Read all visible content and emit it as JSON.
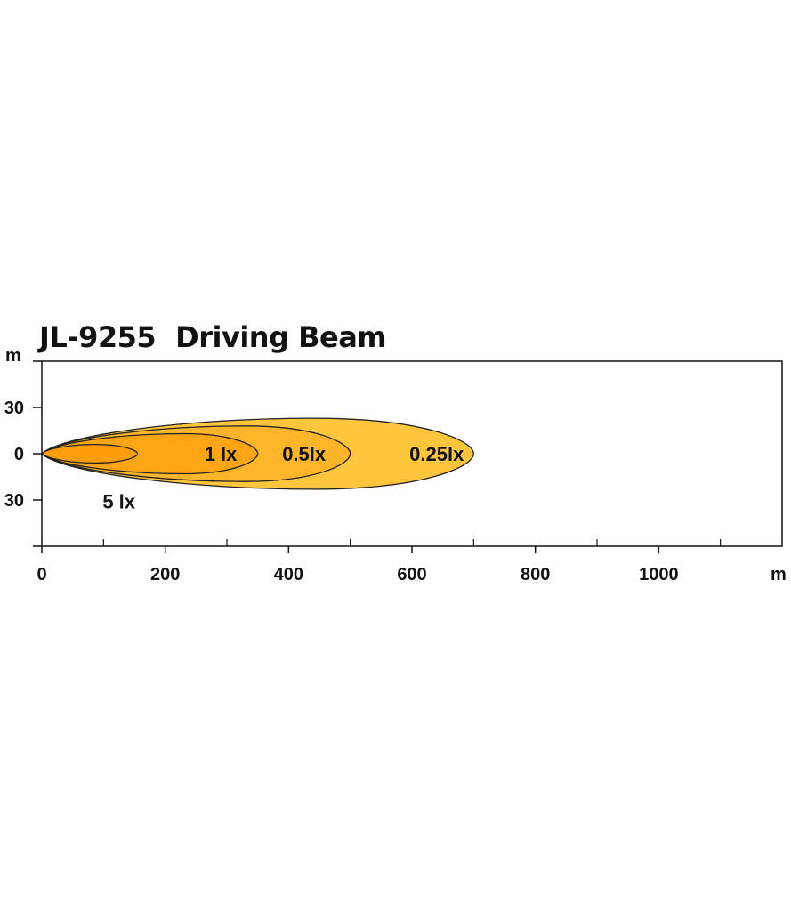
{
  "chart_data": {
    "type": "area",
    "title_model": "JL-9255",
    "title_name": "Driving Beam",
    "xunit": "m",
    "yunit": "m",
    "xlim": [
      0,
      1200
    ],
    "ylim": [
      -60,
      60
    ],
    "x_ticks": [
      0,
      200,
      400,
      600,
      800,
      1000
    ],
    "x_minor_ticks": [
      100,
      300,
      500,
      700,
      900,
      1100
    ],
    "y_ticks_labeled": [
      {
        "value": 30,
        "label": "30"
      },
      {
        "value": 0,
        "label": "0"
      },
      {
        "value": -30,
        "label": "30"
      }
    ],
    "y_minor_ticks": [
      60,
      -60
    ],
    "isolux": [
      {
        "label": "0.25lx",
        "max_distance": 700,
        "half_width": 23,
        "color": "#FFC53D",
        "peak": 440,
        "label_x": 640,
        "label_y": 0
      },
      {
        "label": "0.5lx",
        "max_distance": 500,
        "half_width": 18,
        "color": "#FFB52A",
        "peak": 330,
        "label_x": 425,
        "label_y": 0
      },
      {
        "label": "1 lx",
        "max_distance": 350,
        "half_width": 13,
        "color": "#FFA514",
        "peak": 230,
        "label_x": 290,
        "label_y": 0
      },
      {
        "label": "5 lx",
        "max_distance": 155,
        "half_width": 6,
        "color": "#FF9E0A",
        "peak": 85,
        "label_x": 125,
        "label_y": -31
      }
    ]
  }
}
